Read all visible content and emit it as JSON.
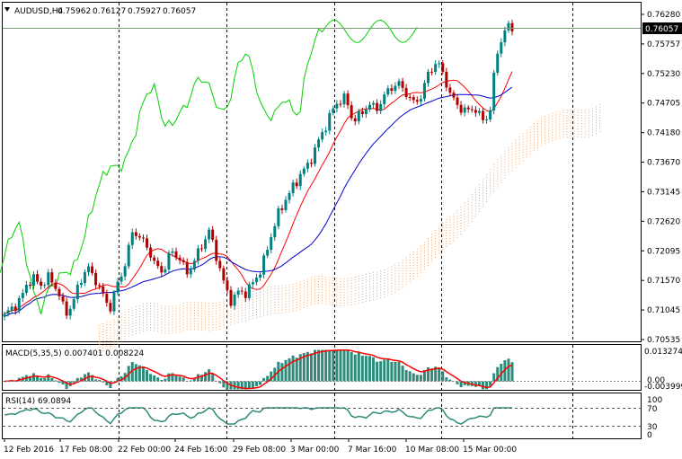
{
  "symbol": "AUDUSD,H4",
  "ohlc": [
    "0.75962",
    "0.76127",
    "0.75927",
    "0.76057"
  ],
  "current_price": "0.76057",
  "price_scale": [
    "0.76280",
    "0.75757",
    "0.75230",
    "0.74705",
    "0.74180",
    "0.73670",
    "0.73145",
    "0.72620",
    "0.72095",
    "0.71570",
    "0.71045",
    "0.70535"
  ],
  "macd": {
    "label": "MACD(5,35,5) 0.007401 0.008224",
    "scale": [
      "0.013274",
      "0.00",
      "-0.003999"
    ]
  },
  "rsi": {
    "label": "RSI(14) 69.0894",
    "scale": [
      "100",
      "70",
      "30",
      "0"
    ]
  },
  "time_axis": [
    "12 Feb 2016",
    "17 Feb 08:00",
    "22 Feb 00:00",
    "24 Feb 16:00",
    "29 Feb 08:00",
    "3 Mar 00:00",
    "7 Mar 16:00",
    "10 Mar 08:00",
    "15 Mar 00:00"
  ],
  "colors": {
    "bull": "#008080",
    "bear": "#b00000",
    "tenkan": "#ff0000",
    "kijun": "#0000cd",
    "chikou": "#00d000",
    "cloud": "#f4a460",
    "macd_hist": "#2e8b7a",
    "macd_signal": "#ff0000",
    "rsi_line": "#2e8b7a"
  },
  "icons": {
    "menu": "dropdown-triangle-icon"
  },
  "chart_data": {
    "type": "candlestick",
    "title": "AUDUSD,H4",
    "ylim": [
      0.70535,
      0.7628
    ],
    "anchors": [
      0.7095,
      0.711,
      0.712,
      0.7155,
      0.716,
      0.715,
      0.7165,
      0.714,
      0.71,
      0.7115,
      0.716,
      0.718,
      0.716,
      0.713,
      0.711,
      0.7155,
      0.719,
      0.725,
      0.723,
      0.7215,
      0.718,
      0.7175,
      0.721,
      0.72,
      0.717,
      0.719,
      0.722,
      0.7245,
      0.72,
      0.715,
      0.712,
      0.714,
      0.7135,
      0.716,
      0.718,
      0.723,
      0.727,
      0.73,
      0.732,
      0.7345,
      0.736,
      0.739,
      0.742,
      0.745,
      0.7475,
      0.748,
      0.744,
      0.745,
      0.747,
      0.746,
      0.748,
      0.75,
      0.7505,
      0.749,
      0.747,
      0.7485,
      0.7525,
      0.7545,
      0.752,
      0.748,
      0.7465,
      0.7455,
      0.7465,
      0.744,
      0.745,
      0.756,
      0.76,
      0.7606
    ]
  }
}
